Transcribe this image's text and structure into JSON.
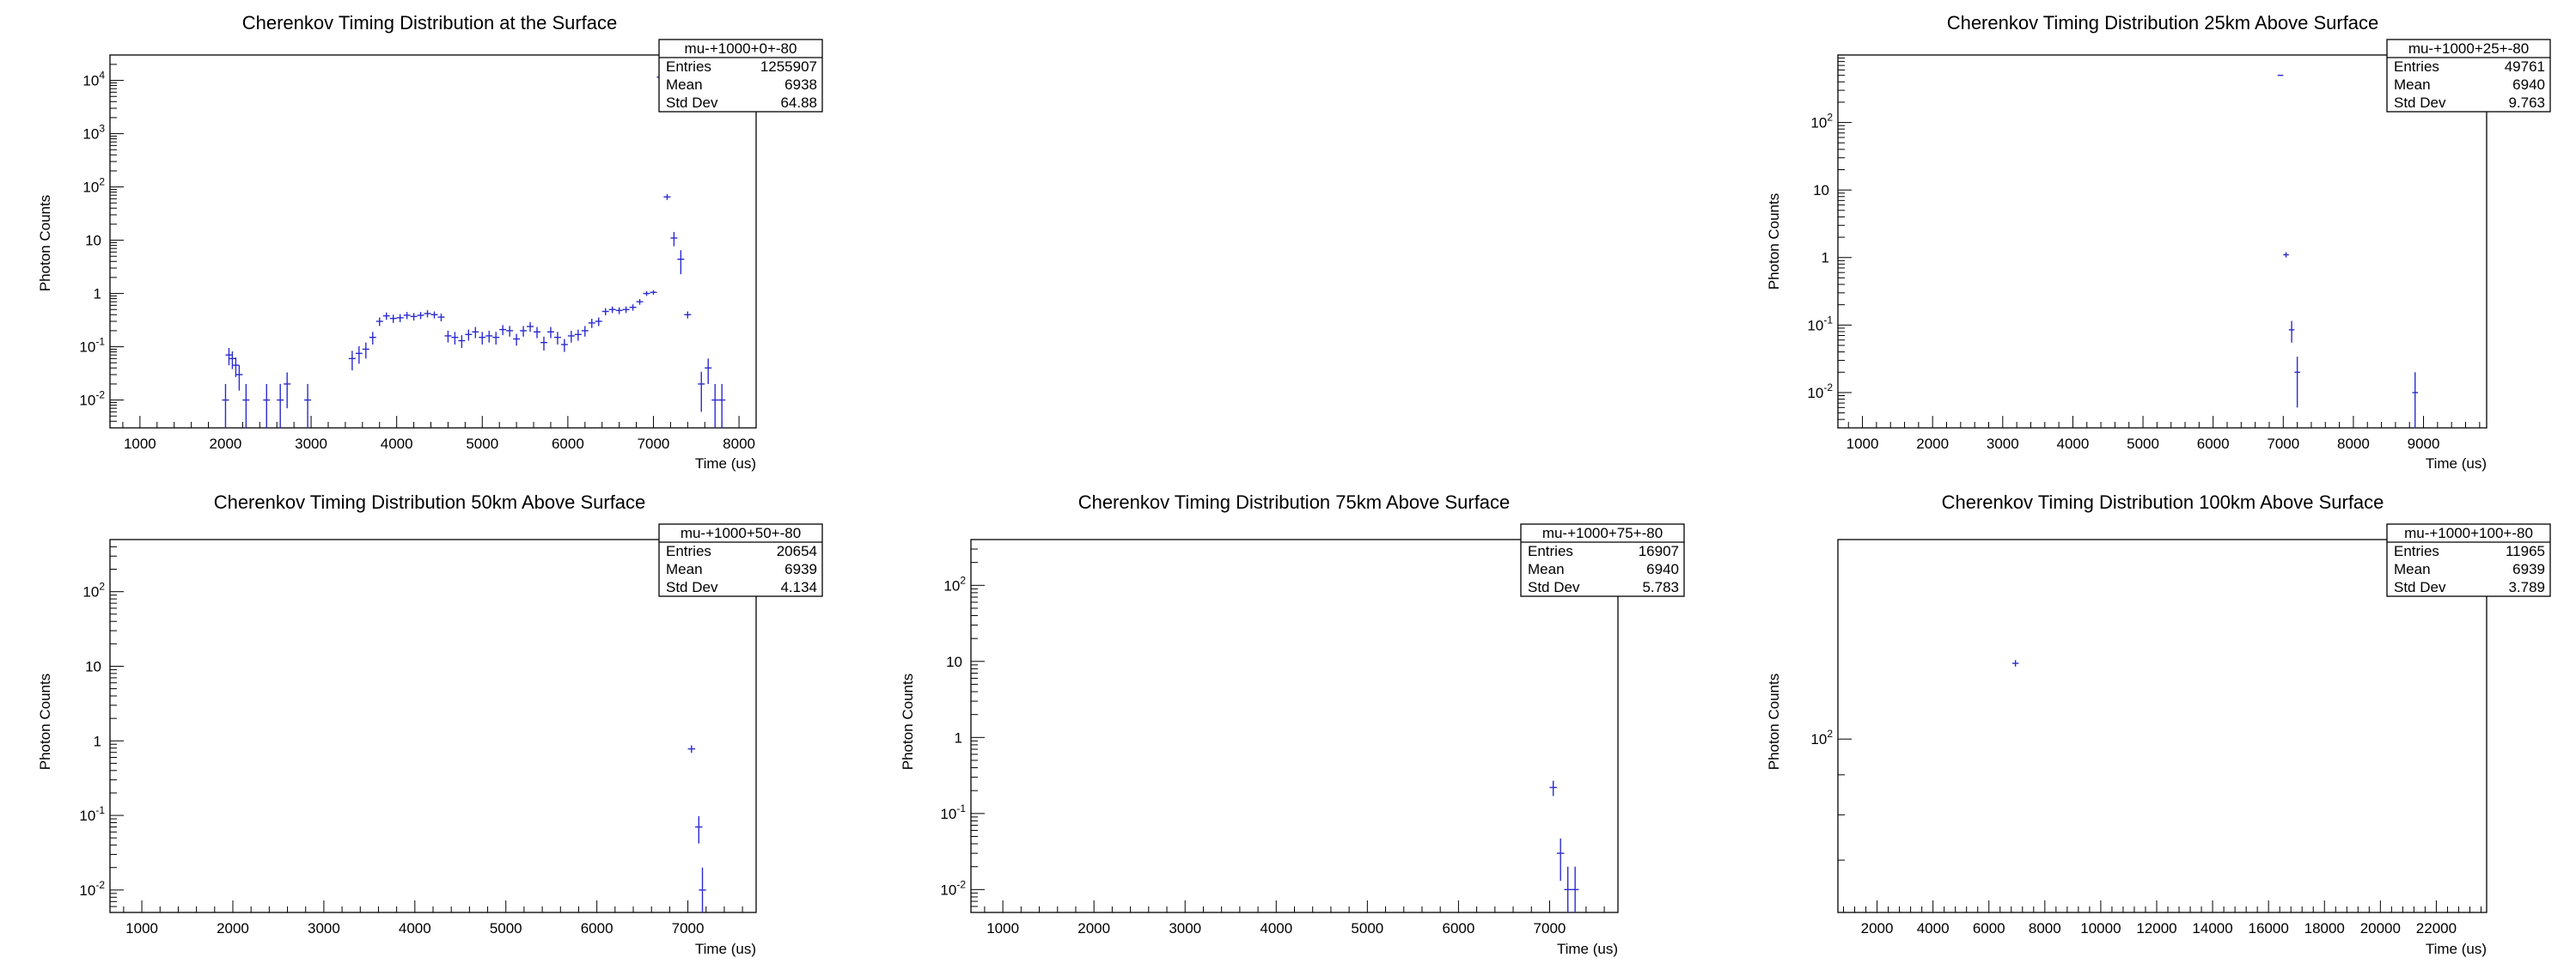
{
  "chart_data": [
    {
      "type": "scatter",
      "title": "Cherenkov Timing Distribution at the Surface",
      "xlabel": "Time (us)",
      "ylabel": "Photon Counts",
      "xlim": [
        650,
        8200
      ],
      "ylim": [
        0.003,
        30000
      ],
      "log_y": true,
      "x_ticks": [
        1000,
        2000,
        3000,
        4000,
        5000,
        6000,
        7000,
        8000
      ],
      "y_ticks": [
        {
          "v": 0.01,
          "base": "10",
          "exp": "-2"
        },
        {
          "v": 0.1,
          "base": "10",
          "exp": "-1"
        },
        {
          "v": 1,
          "base": "1",
          "exp": ""
        },
        {
          "v": 10,
          "base": "10",
          "exp": ""
        },
        {
          "v": 100,
          "base": "10",
          "exp": "2"
        },
        {
          "v": 1000,
          "base": "10",
          "exp": "3"
        },
        {
          "v": 10000,
          "base": "10",
          "exp": "4"
        }
      ],
      "bin_width": 80,
      "stats": {
        "name": "mu-+1000+0+-80",
        "rows": [
          {
            "label": "Entries",
            "value": "1255907"
          },
          {
            "label": "Mean",
            "value": "6938"
          },
          {
            "label": "Std Dev",
            "value": "64.88"
          }
        ]
      },
      "points": [
        [
          2000,
          0.01,
          0.01
        ],
        [
          2040,
          0.07,
          0.025
        ],
        [
          2080,
          0.06,
          0.022
        ],
        [
          2120,
          0.045,
          0.018
        ],
        [
          2160,
          0.03,
          0.015
        ],
        [
          2240,
          0.01,
          0.01
        ],
        [
          2480,
          0.01,
          0.01
        ],
        [
          2640,
          0.01,
          0.01
        ],
        [
          2720,
          0.02,
          0.013
        ],
        [
          2960,
          0.01,
          0.01
        ],
        [
          3480,
          0.06,
          0.024
        ],
        [
          3560,
          0.075,
          0.027
        ],
        [
          3640,
          0.09,
          0.03
        ],
        [
          3720,
          0.15,
          0.04
        ],
        [
          3800,
          0.3,
          0.055
        ],
        [
          3880,
          0.38,
          0.06
        ],
        [
          3960,
          0.34,
          0.06
        ],
        [
          4040,
          0.35,
          0.06
        ],
        [
          4120,
          0.39,
          0.06
        ],
        [
          4200,
          0.37,
          0.06
        ],
        [
          4280,
          0.39,
          0.06
        ],
        [
          4360,
          0.42,
          0.065
        ],
        [
          4440,
          0.4,
          0.06
        ],
        [
          4520,
          0.36,
          0.06
        ],
        [
          4600,
          0.16,
          0.04
        ],
        [
          4680,
          0.15,
          0.04
        ],
        [
          4760,
          0.13,
          0.035
        ],
        [
          4840,
          0.17,
          0.04
        ],
        [
          4920,
          0.19,
          0.045
        ],
        [
          5000,
          0.15,
          0.04
        ],
        [
          5080,
          0.16,
          0.04
        ],
        [
          5160,
          0.15,
          0.04
        ],
        [
          5240,
          0.21,
          0.045
        ],
        [
          5320,
          0.2,
          0.045
        ],
        [
          5400,
          0.14,
          0.035
        ],
        [
          5480,
          0.2,
          0.045
        ],
        [
          5560,
          0.24,
          0.05
        ],
        [
          5640,
          0.19,
          0.045
        ],
        [
          5720,
          0.12,
          0.035
        ],
        [
          5800,
          0.19,
          0.045
        ],
        [
          5880,
          0.15,
          0.04
        ],
        [
          5960,
          0.11,
          0.03
        ],
        [
          6040,
          0.16,
          0.04
        ],
        [
          6120,
          0.17,
          0.04
        ],
        [
          6200,
          0.2,
          0.045
        ],
        [
          6280,
          0.28,
          0.055
        ],
        [
          6360,
          0.3,
          0.055
        ],
        [
          6440,
          0.46,
          0.07
        ],
        [
          6520,
          0.5,
          0.07
        ],
        [
          6600,
          0.48,
          0.07
        ],
        [
          6680,
          0.5,
          0.07
        ],
        [
          6760,
          0.55,
          0.075
        ],
        [
          6840,
          0.7,
          0.085
        ],
        [
          6920,
          1.0,
          0.1
        ],
        [
          7000,
          1.05,
          0.1
        ],
        [
          7080,
          11500,
          100
        ],
        [
          7160,
          65,
          8
        ],
        [
          7240,
          11,
          3.3
        ],
        [
          7320,
          4.4,
          2.1
        ],
        [
          7400,
          0.4,
          0.06
        ],
        [
          7560,
          0.02,
          0.014
        ],
        [
          7640,
          0.04,
          0.02
        ],
        [
          7720,
          0.01,
          0.01
        ],
        [
          7800,
          0.01,
          0.01
        ]
      ]
    },
    {
      "type": "scatter",
      "title": "Cherenkov Timing Distribution 25km Above Surface",
      "xlabel": "Time (us)",
      "ylabel": "Photon Counts",
      "xlim": [
        650,
        9900
      ],
      "ylim": [
        0.003,
        1000
      ],
      "log_y": true,
      "x_ticks": [
        1000,
        2000,
        3000,
        4000,
        5000,
        6000,
        7000,
        8000,
        9000
      ],
      "y_ticks": [
        {
          "v": 0.01,
          "base": "10",
          "exp": "-2"
        },
        {
          "v": 0.1,
          "base": "10",
          "exp": "-1"
        },
        {
          "v": 1,
          "base": "1",
          "exp": ""
        },
        {
          "v": 10,
          "base": "10",
          "exp": ""
        },
        {
          "v": 100,
          "base": "10",
          "exp": "2"
        }
      ],
      "bin_width": 80,
      "stats": {
        "name": "mu-+1000+25+-80",
        "rows": [
          {
            "label": "Entries",
            "value": "49761"
          },
          {
            "label": "Mean",
            "value": "6940"
          },
          {
            "label": "Std Dev",
            "value": "9.763"
          }
        ]
      },
      "points": [
        [
          6960,
          500,
          10
        ],
        [
          7040,
          1.1,
          0.1
        ],
        [
          7120,
          0.085,
          0.03
        ],
        [
          7200,
          0.02,
          0.014
        ],
        [
          8880,
          0.01,
          0.01
        ]
      ]
    },
    {
      "type": "scatter",
      "title": "Cherenkov Timing Distribution 50km Above Surface",
      "xlabel": "Time (us)",
      "ylabel": "Photon Counts",
      "xlim": [
        650,
        7750
      ],
      "ylim": [
        0.005,
        500
      ],
      "log_y": true,
      "x_ticks": [
        1000,
        2000,
        3000,
        4000,
        5000,
        6000,
        7000
      ],
      "y_ticks": [
        {
          "v": 0.01,
          "base": "10",
          "exp": "-2"
        },
        {
          "v": 0.1,
          "base": "10",
          "exp": "-1"
        },
        {
          "v": 1,
          "base": "1",
          "exp": ""
        },
        {
          "v": 10,
          "base": "10",
          "exp": ""
        },
        {
          "v": 100,
          "base": "10",
          "exp": "2"
        }
      ],
      "bin_width": 80,
      "stats": {
        "name": "mu-+1000+50+-80",
        "rows": [
          {
            "label": "Entries",
            "value": "20654"
          },
          {
            "label": "Mean",
            "value": "6939"
          },
          {
            "label": "Std Dev",
            "value": "4.134"
          }
        ]
      },
      "points": [
        [
          7040,
          0.78,
          0.09
        ],
        [
          7120,
          0.07,
          0.028
        ],
        [
          7160,
          0.01,
          0.01
        ]
      ]
    },
    {
      "type": "scatter",
      "title": "Cherenkov Timing Distribution 75km Above Surface",
      "xlabel": "Time (us)",
      "ylabel": "Photon Counts",
      "xlim": [
        650,
        7750
      ],
      "ylim": [
        0.005,
        400
      ],
      "log_y": true,
      "x_ticks": [
        1000,
        2000,
        3000,
        4000,
        5000,
        6000,
        7000
      ],
      "y_ticks": [
        {
          "v": 0.01,
          "base": "10",
          "exp": "-2"
        },
        {
          "v": 0.1,
          "base": "10",
          "exp": "-1"
        },
        {
          "v": 1,
          "base": "1",
          "exp": ""
        },
        {
          "v": 10,
          "base": "10",
          "exp": ""
        },
        {
          "v": 100,
          "base": "10",
          "exp": "2"
        }
      ],
      "bin_width": 80,
      "stats": {
        "name": "mu-+1000+75+-80",
        "rows": [
          {
            "label": "Entries",
            "value": "16907"
          },
          {
            "label": "Mean",
            "value": "6940"
          },
          {
            "label": "Std Dev",
            "value": "5.783"
          }
        ]
      },
      "points": [
        [
          7040,
          0.22,
          0.05
        ],
        [
          7120,
          0.03,
          0.017
        ],
        [
          7200,
          0.01,
          0.01
        ],
        [
          7280,
          0.01,
          0.01
        ]
      ]
    },
    {
      "type": "scatter",
      "title": "Cherenkov Timing Distribution 100km Above Surface",
      "xlabel": "Time (us)",
      "ylabel": "Photon Counts",
      "xlim": [
        600,
        23800
      ],
      "ylim": [
        60,
        180
      ],
      "log_y": true,
      "x_ticks": [
        2000,
        4000,
        6000,
        8000,
        10000,
        12000,
        14000,
        16000,
        18000,
        20000,
        22000
      ],
      "y_ticks": [
        {
          "v": 100,
          "base": "10",
          "exp": "2"
        }
      ],
      "bin_width": 230,
      "stats": {
        "name": "mu-+1000+100+-80",
        "rows": [
          {
            "label": "Entries",
            "value": "11965"
          },
          {
            "label": "Mean",
            "value": "6939"
          },
          {
            "label": "Std Dev",
            "value": "3.789"
          }
        ]
      },
      "points": [
        [
          6950,
          125,
          1.2
        ]
      ]
    }
  ]
}
